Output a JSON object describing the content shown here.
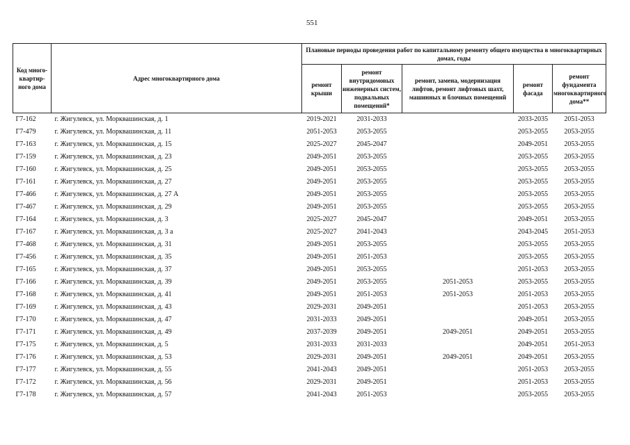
{
  "page_number": "551",
  "headers": {
    "code": "Код много-квартир-ного дома",
    "address": "Адрес многоквартирного дома",
    "group": "Плановые периоды проведения работ по капитальному ремонту общего имущества в многоквартирных домах, годы",
    "roof": "ремонт крыши",
    "systems": "ремонт внутридомовых инженерных систем, подвальных помещений*",
    "lifts": "ремонт, замена, модернизация лифтов, ремонт лифтовых шахт, машинных и блочных помещений",
    "facade": "ремонт фасада",
    "foundation": "ремонт фундамента многоквартирного дома**"
  },
  "rows": [
    [
      "Г7-162",
      "г. Жигулевск, ул. Морквашинская, д. 1",
      "2019-2021",
      "2031-2033",
      "",
      "2033-2035",
      "2051-2053"
    ],
    [
      "Г7-479",
      "г. Жигулевск, ул. Морквашинская, д. 11",
      "2051-2053",
      "2053-2055",
      "",
      "2053-2055",
      "2053-2055"
    ],
    [
      "Г7-163",
      "г. Жигулевск, ул. Морквашинская, д. 15",
      "2025-2027",
      "2045-2047",
      "",
      "2049-2051",
      "2053-2055"
    ],
    [
      "Г7-159",
      "г. Жигулевск, ул. Морквашинская, д. 23",
      "2049-2051",
      "2053-2055",
      "",
      "2053-2055",
      "2053-2055"
    ],
    [
      "Г7-160",
      "г. Жигулевск, ул. Морквашинская, д. 25",
      "2049-2051",
      "2053-2055",
      "",
      "2053-2055",
      "2053-2055"
    ],
    [
      "Г7-161",
      "г. Жигулевск, ул. Морквашинская, д. 27",
      "2049-2051",
      "2053-2055",
      "",
      "2053-2055",
      "2053-2055"
    ],
    [
      "Г7-466",
      "г. Жигулевск, ул. Морквашинская, д. 27 А",
      "2049-2051",
      "2053-2055",
      "",
      "2053-2055",
      "2053-2055"
    ],
    [
      "Г7-467",
      "г. Жигулевск, ул. Морквашинская, д. 29",
      "2049-2051",
      "2053-2055",
      "",
      "2053-2055",
      "2053-2055"
    ],
    [
      "Г7-164",
      "г. Жигулевск, ул. Морквашинская, д. 3",
      "2025-2027",
      "2045-2047",
      "",
      "2049-2051",
      "2053-2055"
    ],
    [
      "Г7-167",
      "г. Жигулевск, ул. Морквашинская, д. 3 а",
      "2025-2027",
      "2041-2043",
      "",
      "2043-2045",
      "2051-2053"
    ],
    [
      "Г7-468",
      "г. Жигулевск, ул. Морквашинская, д. 31",
      "2049-2051",
      "2053-2055",
      "",
      "2053-2055",
      "2053-2055"
    ],
    [
      "Г7-456",
      "г. Жигулевск, ул. Морквашинская, д. 35",
      "2049-2051",
      "2051-2053",
      "",
      "2053-2055",
      "2053-2055"
    ],
    [
      "Г7-165",
      "г. Жигулевск, ул. Морквашинская, д. 37",
      "2049-2051",
      "2053-2055",
      "",
      "2051-2053",
      "2053-2055"
    ],
    [
      "Г7-166",
      "г. Жигулевск, ул. Морквашинская, д. 39",
      "2049-2051",
      "2053-2055",
      "2051-2053",
      "2053-2055",
      "2053-2055"
    ],
    [
      "Г7-168",
      "г. Жигулевск, ул. Морквашинская, д. 41",
      "2049-2051",
      "2051-2053",
      "2051-2053",
      "2051-2053",
      "2053-2055"
    ],
    [
      "Г7-169",
      "г. Жигулевск, ул. Морквашинская, д. 43",
      "2029-2031",
      "2049-2051",
      "",
      "2051-2053",
      "2053-2055"
    ],
    [
      "Г7-170",
      "г. Жигулевск, ул. Морквашинская, д. 47",
      "2031-2033",
      "2049-2051",
      "",
      "2049-2051",
      "2053-2055"
    ],
    [
      "Г7-171",
      "г. Жигулевск, ул. Морквашинская, д. 49",
      "2037-2039",
      "2049-2051",
      "2049-2051",
      "2049-2051",
      "2053-2055"
    ],
    [
      "Г7-175",
      "г. Жигулевск, ул. Морквашинская, д. 5",
      "2031-2033",
      "2031-2033",
      "",
      "2049-2051",
      "2051-2053"
    ],
    [
      "Г7-176",
      "г. Жигулевск, ул. Морквашинская, д. 53",
      "2029-2031",
      "2049-2051",
      "2049-2051",
      "2049-2051",
      "2053-2055"
    ],
    [
      "Г7-177",
      "г. Жигулевск, ул. Морквашинская, д. 55",
      "2041-2043",
      "2049-2051",
      "",
      "2051-2053",
      "2053-2055"
    ],
    [
      "Г7-172",
      "г. Жигулевск, ул. Морквашинская, д. 56",
      "2029-2031",
      "2049-2051",
      "",
      "2051-2053",
      "2053-2055"
    ],
    [
      "Г7-178",
      "г. Жигулевск, ул. Морквашинская, д. 57",
      "2041-2043",
      "2051-2053",
      "",
      "2053-2055",
      "2053-2055"
    ]
  ]
}
